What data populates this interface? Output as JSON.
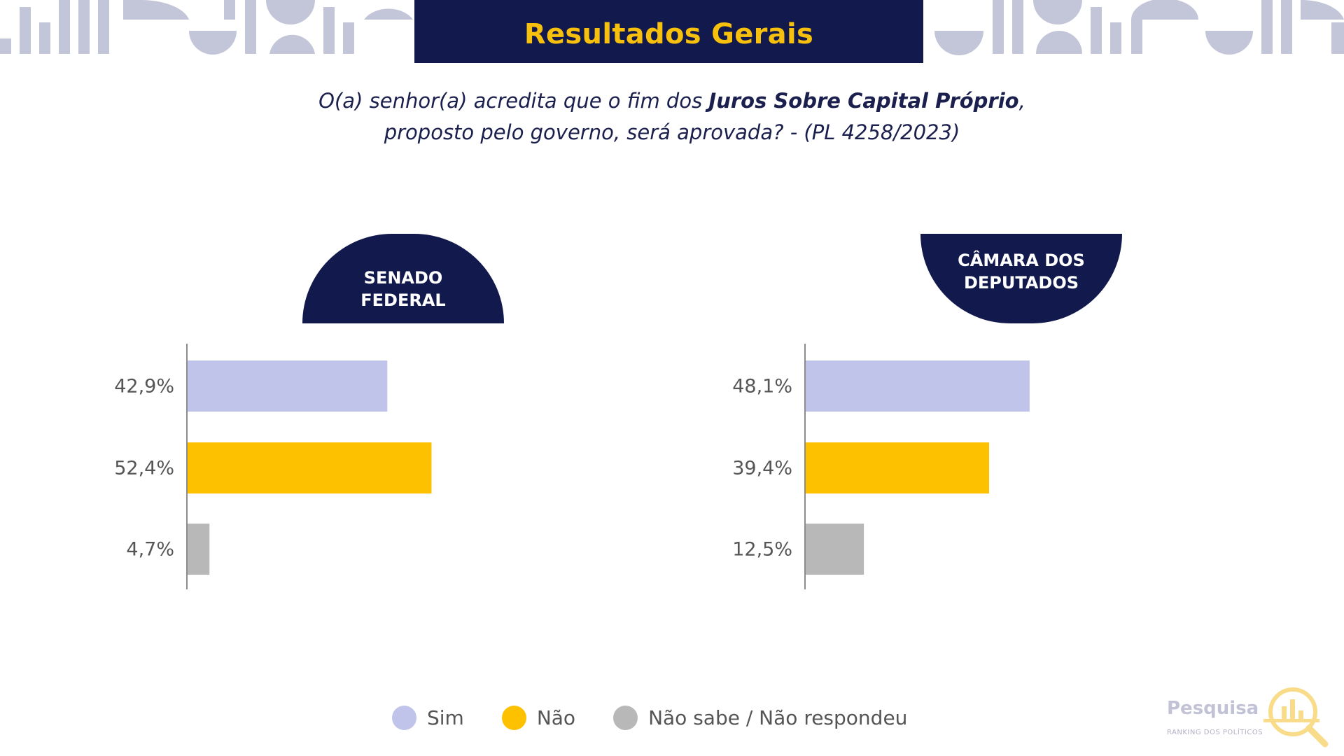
{
  "header": {
    "title": "Resultados Gerais",
    "question_part1": "O(a) senhor(a) acredita que o fim dos ",
    "question_bold": "Juros Sobre Capital Próprio",
    "question_part2": ",",
    "question_line2": "proposto pelo governo, será aprovada? - (PL 4258/2023)"
  },
  "colors": {
    "navy": "#12194d",
    "title_yellow": "#f7c00c",
    "sim": "#c0c4ea",
    "nao": "#fdc100",
    "nao_sabe": "#b8b8b8",
    "decoration": "#c3c6d8"
  },
  "chart_data": [
    {
      "type": "bar",
      "orientation": "horizontal",
      "title": "SENADO FEDERAL",
      "title_line1": "SENADO",
      "title_line2": "FEDERAL",
      "categories": [
        "Sim",
        "Não",
        "Não sabe / Não respondeu"
      ],
      "values": [
        42.9,
        52.4,
        4.7
      ],
      "value_labels": [
        "42,9%",
        "52,4%",
        "4,7%"
      ],
      "xlim": [
        0,
        100
      ],
      "grid": false
    },
    {
      "type": "bar",
      "orientation": "horizontal",
      "title": "CÂMARA DOS DEPUTADOS",
      "title_line1": "CÂMARA DOS",
      "title_line2": "DEPUTADOS",
      "categories": [
        "Sim",
        "Não",
        "Não sabe / Não respondeu"
      ],
      "values": [
        48.1,
        39.4,
        12.5
      ],
      "value_labels": [
        "48,1%",
        "39,4%",
        "12,5%"
      ],
      "xlim": [
        0,
        100
      ],
      "grid": false
    }
  ],
  "legend": {
    "placement": "bottom-center",
    "items": [
      {
        "label": "Sim",
        "color": "#c0c4ea"
      },
      {
        "label": "Não",
        "color": "#fdc100"
      },
      {
        "label": "Não sabe / Não respondeu",
        "color": "#b8b8b8"
      }
    ]
  },
  "brand": {
    "name": "Pesquisa",
    "subtitle": "RANKING DOS POLÍTICOS",
    "icon": "magnifier-bar-chart-icon"
  }
}
